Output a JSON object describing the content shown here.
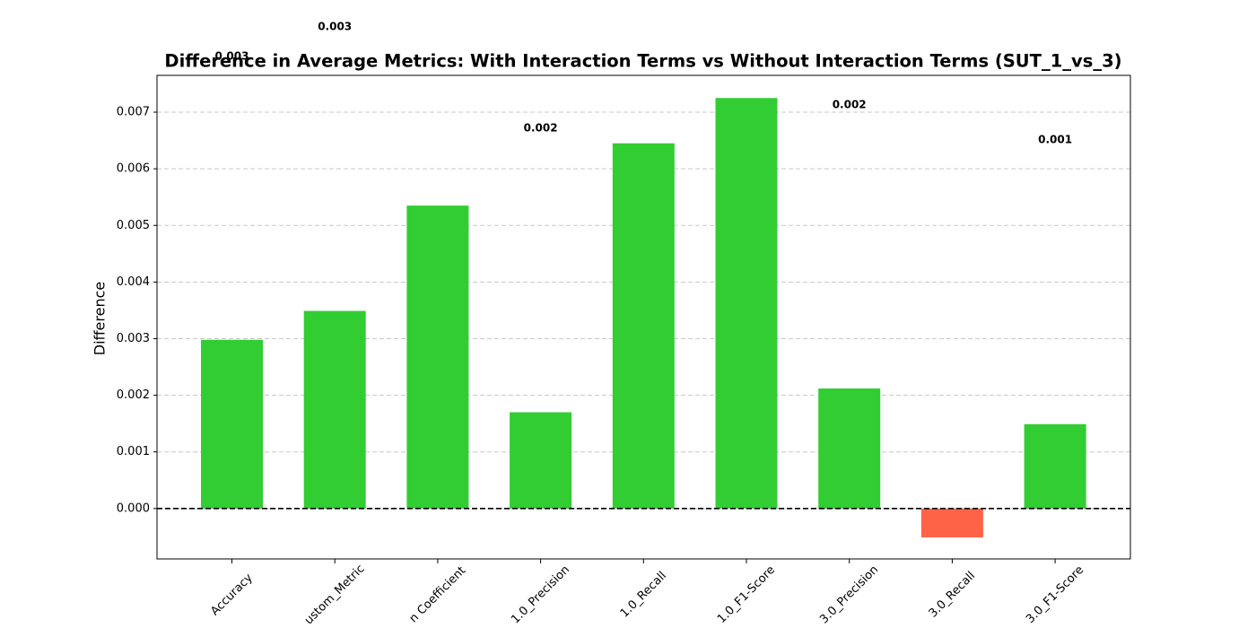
{
  "chart_data": {
    "type": "bar",
    "title": "Difference in Average Metrics: With Interaction Terms vs Without Interaction Terms (SUT_1_vs_3)",
    "y_label": "Difference",
    "categories": [
      "Accuracy",
      "ustom_Metric",
      "n Coefficient",
      "1.0_Precision",
      "1.0_Recall",
      "1.0_F1-Score",
      "3.0_Precision",
      "3.0_Recall",
      "3.0_F1-Score"
    ],
    "values": [
      0.00298,
      0.00349,
      0.00535,
      0.0017,
      0.00645,
      0.00725,
      0.00212,
      -0.00051,
      0.00149
    ],
    "value_labels": [
      "0.003",
      "0.003",
      null,
      "0.002",
      null,
      null,
      "0.002",
      null,
      "0.001"
    ],
    "colors": [
      "#32cd32",
      "#32cd32",
      "#32cd32",
      "#32cd32",
      "#32cd32",
      "#32cd32",
      "#32cd32",
      "#ff6347",
      "#32cd32"
    ],
    "ylim": [
      -0.00089,
      0.00765
    ],
    "yticks": [
      {
        "value": 0,
        "label": "0.000"
      },
      {
        "value": 0.001,
        "label": "0.001"
      },
      {
        "value": 0.002,
        "label": "0.002"
      },
      {
        "value": 0.003,
        "label": "0.003"
      },
      {
        "value": 0.004,
        "label": "0.004"
      },
      {
        "value": 0.005,
        "label": "0.005"
      },
      {
        "value": 0.006,
        "label": "0.006"
      },
      {
        "value": 0.007,
        "label": "0.007"
      }
    ],
    "grid": true,
    "zero_line": true
  }
}
